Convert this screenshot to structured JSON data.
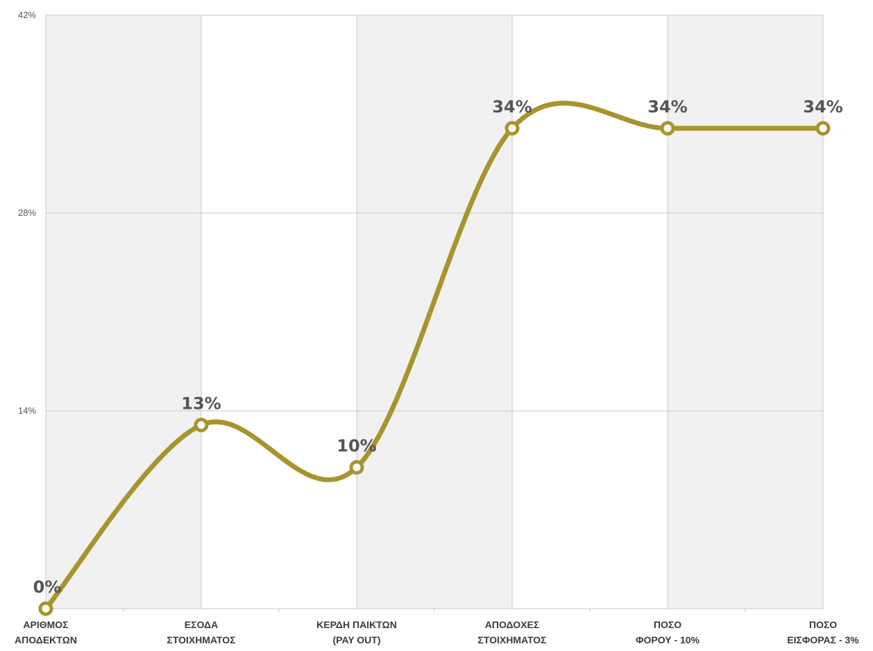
{
  "chart_data": {
    "type": "line",
    "categories": [
      [
        "ΑΡΙΘΜΟΣ",
        "ΑΠΟΔΕΚΤΩΝ"
      ],
      [
        "ΕΣΟΔΑ",
        "ΣΤΟΙΧΗΜΑΤΟΣ"
      ],
      [
        "ΚΕΡΔΗ ΠΑΙΚΤΩΝ",
        "(PAY OUT)"
      ],
      [
        "ΑΠΟΔΟΧΕΣ",
        "ΣΤΟΙΧΗΜΑΤΟΣ"
      ],
      [
        "ΠΟΣΟ",
        "ΦΟΡΟΥ - 10%"
      ],
      [
        "ΠΟΣΟ",
        "ΕΙΣΦΟΡΑΣ - 3%"
      ]
    ],
    "values": [
      0,
      13,
      10,
      34,
      34,
      34
    ],
    "data_labels": [
      "0%",
      "13%",
      "10%",
      "34%",
      "34%",
      "34%"
    ],
    "ylim": [
      0,
      42
    ],
    "yticks": [
      14,
      28,
      42
    ],
    "ytick_labels": [
      "14%",
      "28%",
      "42%"
    ],
    "smooth": true,
    "grid": true,
    "alternating_bands": true,
    "colors": {
      "line": "#A8942E",
      "marker_fill": "#ffffff",
      "band": "#F0F1F0",
      "grid": "#C8C8C8",
      "data_label": "#555555",
      "axis_label": "#3a3a3a"
    }
  }
}
